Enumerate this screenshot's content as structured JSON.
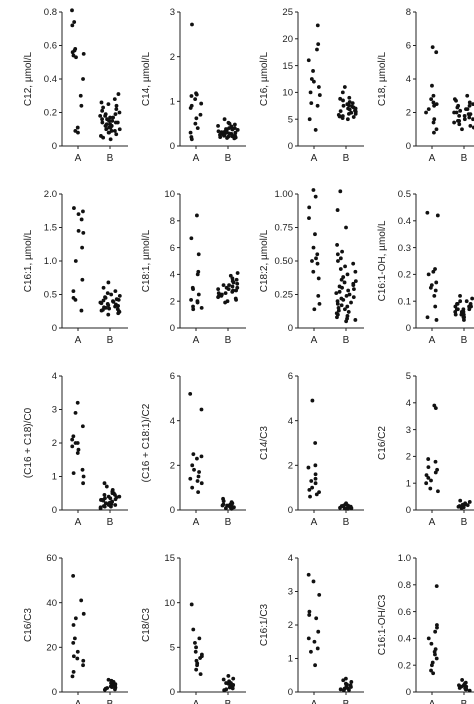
{
  "chart_data": [
    {
      "type": "scatter",
      "ylabel": "C12, µmol/L",
      "ylim": [
        0,
        0.8
      ],
      "yticks": [
        0,
        0.2,
        0.4,
        0.6,
        0.8
      ],
      "categories": [
        "A",
        "B"
      ],
      "series": [
        {
          "category": "A",
          "values": [
            0.81,
            0.74,
            0.72,
            0.58,
            0.57,
            0.56,
            0.55,
            0.54,
            0.53,
            0.4,
            0.3,
            0.24,
            0.11,
            0.09,
            0.08
          ]
        },
        {
          "category": "B",
          "values": [
            0.31,
            0.28,
            0.26,
            0.25,
            0.24,
            0.23,
            0.22,
            0.21,
            0.2,
            0.19,
            0.19,
            0.18,
            0.18,
            0.17,
            0.17,
            0.16,
            0.16,
            0.15,
            0.15,
            0.15,
            0.14,
            0.14,
            0.14,
            0.13,
            0.13,
            0.12,
            0.12,
            0.12,
            0.11,
            0.11,
            0.1,
            0.1,
            0.09,
            0.09,
            0.08,
            0.08,
            0.07,
            0.06,
            0.05,
            0.04
          ]
        }
      ]
    },
    {
      "type": "scatter",
      "ylabel": "C14, µmol/L",
      "ylim": [
        0,
        3
      ],
      "yticks": [
        0,
        1,
        2,
        3
      ],
      "categories": [
        "A",
        "B"
      ],
      "series": [
        {
          "category": "A",
          "values": [
            2.72,
            1.18,
            1.15,
            1.12,
            1.05,
            0.95,
            0.9,
            0.85,
            0.7,
            0.62,
            0.5,
            0.4,
            0.3,
            0.2,
            0.15
          ]
        },
        {
          "category": "B",
          "values": [
            0.6,
            0.52,
            0.5,
            0.48,
            0.45,
            0.44,
            0.42,
            0.4,
            0.4,
            0.38,
            0.37,
            0.36,
            0.35,
            0.34,
            0.33,
            0.33,
            0.32,
            0.31,
            0.3,
            0.3,
            0.29,
            0.28,
            0.28,
            0.27,
            0.26,
            0.25,
            0.25,
            0.24,
            0.23,
            0.22,
            0.21,
            0.2,
            0.19,
            0.18,
            0.17
          ]
        }
      ]
    },
    {
      "type": "scatter",
      "ylabel": "C16, µmol/L",
      "ylim": [
        0,
        25
      ],
      "yticks": [
        0,
        5,
        10,
        15,
        20,
        25
      ],
      "categories": [
        "A",
        "B"
      ],
      "series": [
        {
          "category": "A",
          "values": [
            22.5,
            19.0,
            18.0,
            16.0,
            14.0,
            12.5,
            12.0,
            11.0,
            10.0,
            9.5,
            8.0,
            7.5,
            5.0,
            3.0
          ]
        },
        {
          "category": "B",
          "values": [
            11.0,
            10.0,
            9.0,
            8.8,
            8.5,
            8.2,
            8.0,
            7.8,
            7.6,
            7.5,
            7.4,
            7.2,
            7.0,
            7.0,
            6.8,
            6.6,
            6.5,
            6.4,
            6.2,
            6.0,
            6.0,
            5.8,
            5.6,
            5.5,
            5.4,
            5.2,
            5.0
          ]
        }
      ]
    },
    {
      "type": "scatter",
      "ylabel": "C18, µmol/L",
      "ylim": [
        0,
        8
      ],
      "yticks": [
        0,
        2,
        4,
        6,
        8
      ],
      "categories": [
        "A",
        "B"
      ],
      "series": [
        {
          "category": "A",
          "values": [
            5.9,
            5.6,
            3.6,
            3.0,
            2.8,
            2.6,
            2.5,
            2.4,
            2.2,
            2.0,
            1.6,
            1.4,
            1.0,
            0.8
          ]
        },
        {
          "category": "B",
          "values": [
            3.0,
            2.8,
            2.7,
            2.6,
            2.5,
            2.4,
            2.4,
            2.3,
            2.2,
            2.2,
            2.1,
            2.0,
            2.0,
            1.9,
            1.9,
            1.8,
            1.8,
            1.7,
            1.6,
            1.6,
            1.5,
            1.5,
            1.4,
            1.3,
            1.2,
            1.1,
            1.0
          ]
        }
      ]
    },
    {
      "type": "scatter",
      "ylabel": "C16:1, µmol/L",
      "ylim": [
        0,
        2
      ],
      "yticks": [
        0,
        0.5,
        1.0,
        1.5,
        2.0
      ],
      "categories": [
        "A",
        "B"
      ],
      "series": [
        {
          "category": "A",
          "values": [
            1.79,
            1.74,
            1.7,
            1.62,
            1.45,
            1.42,
            1.2,
            1.0,
            0.72,
            0.55,
            0.45,
            0.42,
            0.26
          ]
        },
        {
          "category": "B",
          "values": [
            0.68,
            0.6,
            0.55,
            0.52,
            0.5,
            0.48,
            0.46,
            0.45,
            0.43,
            0.42,
            0.41,
            0.4,
            0.39,
            0.38,
            0.37,
            0.36,
            0.35,
            0.34,
            0.33,
            0.32,
            0.31,
            0.3,
            0.29,
            0.28,
            0.27,
            0.26,
            0.25,
            0.24,
            0.22,
            0.2
          ]
        }
      ]
    },
    {
      "type": "scatter",
      "ylabel": "C18:1, µmol/L",
      "ylim": [
        0,
        10
      ],
      "yticks": [
        0,
        2,
        4,
        6,
        8,
        10
      ],
      "categories": [
        "A",
        "B"
      ],
      "series": [
        {
          "category": "A",
          "values": [
            8.4,
            6.7,
            5.5,
            4.2,
            4.0,
            3.0,
            2.9,
            2.5,
            2.1,
            2.0,
            1.9,
            1.6,
            1.5,
            1.4
          ]
        },
        {
          "category": "B",
          "values": [
            4.1,
            3.9,
            3.7,
            3.6,
            3.5,
            3.4,
            3.3,
            3.2,
            3.2,
            3.1,
            3.0,
            3.0,
            2.9,
            2.9,
            2.8,
            2.8,
            2.7,
            2.6,
            2.6,
            2.5,
            2.5,
            2.4,
            2.4,
            2.3,
            2.2,
            2.1,
            2.0,
            1.9
          ]
        }
      ]
    },
    {
      "type": "scatter",
      "ylabel": "C18:2, µmol/L",
      "ylim": [
        0,
        1
      ],
      "yticks": [
        0,
        0.25,
        0.5,
        0.75,
        1.0
      ],
      "categories": [
        "A",
        "B"
      ],
      "series": [
        {
          "category": "A",
          "values": [
            1.03,
            0.98,
            0.9,
            0.82,
            0.7,
            0.6,
            0.55,
            0.52,
            0.5,
            0.48,
            0.42,
            0.37,
            0.24,
            0.18,
            0.14
          ]
        },
        {
          "category": "B",
          "values": [
            1.02,
            0.88,
            0.75,
            0.62,
            0.57,
            0.55,
            0.52,
            0.5,
            0.48,
            0.46,
            0.44,
            0.42,
            0.4,
            0.38,
            0.36,
            0.35,
            0.34,
            0.33,
            0.32,
            0.31,
            0.3,
            0.29,
            0.28,
            0.27,
            0.26,
            0.25,
            0.24,
            0.23,
            0.22,
            0.21,
            0.2,
            0.19,
            0.18,
            0.17,
            0.16,
            0.15,
            0.14,
            0.13,
            0.12,
            0.11,
            0.1,
            0.09,
            0.08,
            0.07,
            0.06,
            0.05
          ]
        }
      ]
    },
    {
      "type": "scatter",
      "ylabel": "C16:1-OH, µmol/L",
      "ylim": [
        0,
        0.5
      ],
      "yticks": [
        0,
        0.1,
        0.2,
        0.3,
        0.4,
        0.5
      ],
      "categories": [
        "A",
        "B"
      ],
      "series": [
        {
          "category": "A",
          "values": [
            0.43,
            0.42,
            0.22,
            0.21,
            0.2,
            0.17,
            0.16,
            0.15,
            0.14,
            0.12,
            0.08,
            0.04,
            0.03
          ]
        },
        {
          "category": "B",
          "values": [
            0.12,
            0.11,
            0.1,
            0.1,
            0.09,
            0.09,
            0.09,
            0.08,
            0.08,
            0.08,
            0.08,
            0.07,
            0.07,
            0.07,
            0.07,
            0.06,
            0.06,
            0.06,
            0.06,
            0.05,
            0.05,
            0.05,
            0.04,
            0.04,
            0.03
          ]
        }
      ]
    },
    {
      "type": "scatter",
      "ylabel": "(C16 + C18)/C0",
      "ylim": [
        0,
        4
      ],
      "yticks": [
        0,
        1,
        2,
        3,
        4
      ],
      "categories": [
        "A",
        "B"
      ],
      "series": [
        {
          "category": "A",
          "values": [
            3.2,
            2.9,
            2.5,
            2.2,
            2.1,
            2.0,
            2.0,
            1.9,
            1.8,
            1.7,
            1.2,
            1.1,
            1.0,
            0.8
          ]
        },
        {
          "category": "B",
          "values": [
            0.8,
            0.7,
            0.6,
            0.55,
            0.5,
            0.5,
            0.45,
            0.45,
            0.4,
            0.4,
            0.38,
            0.35,
            0.35,
            0.32,
            0.3,
            0.3,
            0.28,
            0.25,
            0.25,
            0.22,
            0.2,
            0.2,
            0.18,
            0.15,
            0.15,
            0.12,
            0.1,
            0.1,
            0.08,
            0.05
          ]
        }
      ]
    },
    {
      "type": "scatter",
      "ylabel": "(C16 + C18:1)/C2",
      "ylim": [
        0,
        6
      ],
      "yticks": [
        0,
        2,
        4,
        6
      ],
      "categories": [
        "A",
        "B"
      ],
      "series": [
        {
          "category": "A",
          "values": [
            5.2,
            4.5,
            2.5,
            2.4,
            2.3,
            2.0,
            1.8,
            1.7,
            1.5,
            1.4,
            1.3,
            1.2,
            1.0,
            0.8
          ]
        },
        {
          "category": "B",
          "values": [
            0.5,
            0.4,
            0.35,
            0.3,
            0.3,
            0.25,
            0.25,
            0.2,
            0.2,
            0.18,
            0.15,
            0.15,
            0.12,
            0.1,
            0.1,
            0.08,
            0.05
          ]
        }
      ]
    },
    {
      "type": "scatter",
      "ylabel": "C14/C3",
      "ylim": [
        0,
        6
      ],
      "yticks": [
        0,
        2,
        4,
        6
      ],
      "categories": [
        "A",
        "B"
      ],
      "series": [
        {
          "category": "A",
          "values": [
            4.9,
            3.0,
            2.0,
            1.9,
            1.6,
            1.4,
            1.3,
            1.2,
            1.0,
            0.9,
            0.8,
            0.7,
            0.6
          ]
        },
        {
          "category": "B",
          "values": [
            0.3,
            0.25,
            0.2,
            0.2,
            0.18,
            0.15,
            0.15,
            0.12,
            0.1,
            0.1,
            0.08,
            0.06,
            0.05
          ]
        }
      ]
    },
    {
      "type": "scatter",
      "ylabel": "C16/C2",
      "ylim": [
        0,
        5
      ],
      "yticks": [
        0,
        1,
        2,
        3,
        4,
        5
      ],
      "categories": [
        "A",
        "B"
      ],
      "series": [
        {
          "category": "A",
          "values": [
            3.9,
            3.8,
            1.9,
            1.8,
            1.6,
            1.5,
            1.4,
            1.3,
            1.2,
            1.1,
            1.0,
            0.8,
            0.7
          ]
        },
        {
          "category": "B",
          "values": [
            0.35,
            0.3,
            0.25,
            0.2,
            0.2,
            0.18,
            0.15,
            0.15,
            0.12,
            0.1,
            0.1,
            0.08
          ]
        }
      ]
    },
    {
      "type": "scatter",
      "ylabel": "C16/C3",
      "ylim": [
        0,
        60
      ],
      "yticks": [
        0,
        20,
        40,
        60
      ],
      "categories": [
        "A",
        "B"
      ],
      "series": [
        {
          "category": "A",
          "values": [
            52,
            41,
            35,
            33,
            30,
            24,
            22,
            18,
            16,
            15,
            14,
            12,
            9,
            7
          ]
        },
        {
          "category": "B",
          "values": [
            5.5,
            5.0,
            4.5,
            4.0,
            3.8,
            3.5,
            3.2,
            3.0,
            2.8,
            2.5,
            2.2,
            2.0,
            1.8,
            1.5,
            1.2,
            1.0
          ]
        }
      ]
    },
    {
      "type": "scatter",
      "ylabel": "C18/C3",
      "ylim": [
        0,
        15
      ],
      "yticks": [
        0,
        5,
        10,
        15
      ],
      "categories": [
        "A",
        "B"
      ],
      "series": [
        {
          "category": "A",
          "values": [
            9.8,
            7.0,
            6.0,
            5.5,
            5.0,
            4.5,
            4.2,
            4.0,
            3.8,
            3.5,
            3.2,
            3.0,
            2.5,
            2.0
          ]
        },
        {
          "category": "B",
          "values": [
            1.8,
            1.5,
            1.4,
            1.2,
            1.0,
            1.0,
            0.9,
            0.8,
            0.7,
            0.6,
            0.5,
            0.5,
            0.4,
            0.3,
            0.2
          ]
        }
      ]
    },
    {
      "type": "scatter",
      "ylabel": "C16:1/C3",
      "ylim": [
        0,
        4
      ],
      "yticks": [
        0,
        1,
        2,
        3,
        4
      ],
      "categories": [
        "A",
        "B"
      ],
      "series": [
        {
          "category": "A",
          "values": [
            3.5,
            3.3,
            2.9,
            2.4,
            2.3,
            2.2,
            1.8,
            1.6,
            1.5,
            1.3,
            1.2,
            0.8
          ]
        },
        {
          "category": "B",
          "values": [
            0.4,
            0.35,
            0.3,
            0.25,
            0.22,
            0.2,
            0.18,
            0.15,
            0.12,
            0.1,
            0.08,
            0.06,
            0.05
          ]
        }
      ]
    },
    {
      "type": "scatter",
      "ylabel": "C16:1-OH/C3",
      "ylim": [
        0,
        1
      ],
      "yticks": [
        0,
        0.2,
        0.4,
        0.6,
        0.8,
        1.0
      ],
      "categories": [
        "A",
        "B"
      ],
      "series": [
        {
          "category": "A",
          "values": [
            0.79,
            0.5,
            0.48,
            0.45,
            0.4,
            0.36,
            0.32,
            0.3,
            0.28,
            0.25,
            0.22,
            0.2,
            0.16,
            0.14
          ]
        },
        {
          "category": "B",
          "values": [
            0.09,
            0.07,
            0.06,
            0.05,
            0.05,
            0.04,
            0.04,
            0.03,
            0.03,
            0.02,
            0.02,
            0.01
          ]
        }
      ]
    }
  ]
}
